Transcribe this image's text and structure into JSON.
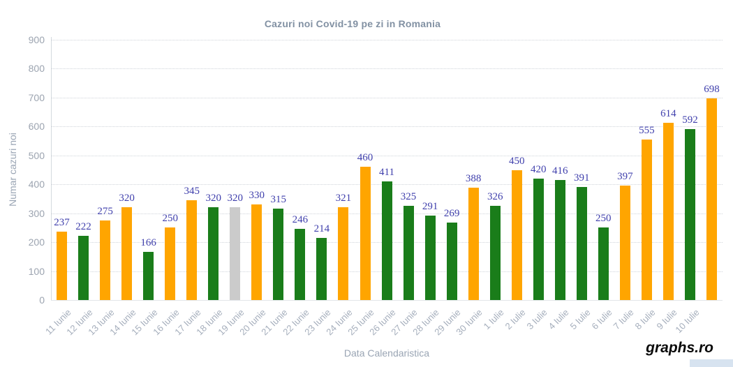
{
  "watermark": {
    "text": "graphs.ro"
  },
  "chart_data": {
    "type": "bar",
    "title": "Cazuri noi Covid-19 pe zi in Romania",
    "xlabel": "Data Calendaristica",
    "ylabel": "Numar cazuri noi",
    "ylim": [
      0,
      900
    ],
    "yticks": [
      0,
      100,
      200,
      300,
      400,
      500,
      600,
      700,
      800,
      900
    ],
    "grid": "horizontal-dotted",
    "legend": "none",
    "categories": [
      "11 Iunie",
      "12 Iunie",
      "13 Iunie",
      "14 Iunie",
      "15 Iunie",
      "16 Iunie",
      "17 Iunie",
      "18 Iunie",
      "19 Iunie",
      "20 Iunie",
      "21 Iunie",
      "22 Iunie",
      "23 Iunie",
      "24 Iunie",
      "25 Iunie",
      "26 Iunie",
      "27 Iunie",
      "28 Iunie",
      "29 Iunie",
      "30 Iunie",
      "1 Iulie",
      "2 Iulie",
      "3 Iulie",
      "4 Iulie",
      "5 Iulie",
      "6 Iulie",
      "7 Iulie",
      "8 Iulie",
      "9 Iulie",
      "10 Iulie",
      ""
    ],
    "values": [
      237,
      222,
      275,
      320,
      166,
      250,
      345,
      320,
      320,
      330,
      315,
      246,
      214,
      321,
      460,
      411,
      325,
      291,
      269,
      388,
      326,
      450,
      420,
      416,
      391,
      250,
      397,
      555,
      614,
      592,
      698
    ],
    "colors": [
      "orange",
      "green",
      "orange",
      "orange",
      "green",
      "orange",
      "orange",
      "green",
      "gray",
      "orange",
      "green",
      "green",
      "green",
      "orange",
      "orange",
      "green",
      "green",
      "green",
      "green",
      "orange",
      "green",
      "orange",
      "green",
      "green",
      "green",
      "green",
      "orange",
      "orange",
      "orange",
      "green",
      "orange"
    ],
    "palette": {
      "orange": "#FFA500",
      "green": "#1A7D1A",
      "gray": "#CBCBCB"
    },
    "value_label_color": "#3F3FAC",
    "title_color": "#8291A3",
    "axis_title_color": "#9AA5B4",
    "tick_label_color": "#9CA4B0",
    "date_label_color": "#A5AEBC"
  }
}
